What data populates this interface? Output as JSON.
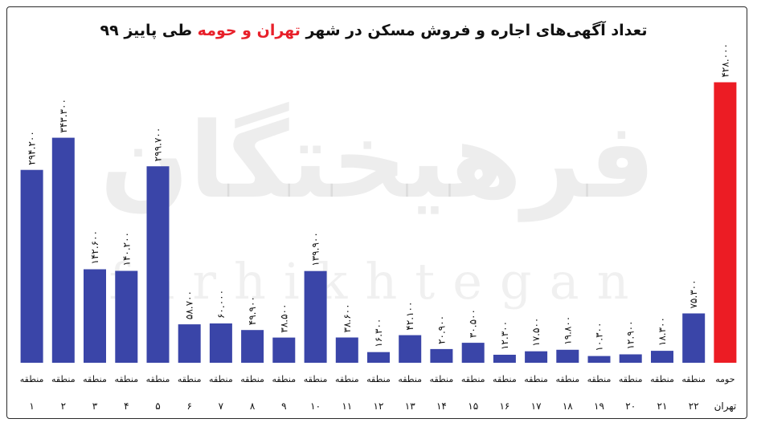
{
  "chart_data": {
    "type": "bar",
    "title_parts": [
      {
        "text": "تعداد آگهی‌های اجاره و فروش مسکن در شهر ",
        "color": "#111111"
      },
      {
        "text": "تهران و حومه",
        "color": "#e8202a"
      },
      {
        "text": " طی پاییز ۹۹",
        "color": "#111111"
      }
    ],
    "watermark": {
      "fa": "فرهیختگان",
      "en": "farhikhtegan"
    },
    "xlabel": "",
    "ylabel": "",
    "ylim": [
      0,
      480000
    ],
    "bar_color": "#3a45a8",
    "highlight_color": "#ec1c24",
    "categories": [
      {
        "line1": "منطقه",
        "line2": "۱"
      },
      {
        "line1": "منطقه",
        "line2": "۲"
      },
      {
        "line1": "منطقه",
        "line2": "۳"
      },
      {
        "line1": "منطقه",
        "line2": "۴"
      },
      {
        "line1": "منطقه",
        "line2": "۵"
      },
      {
        "line1": "منطقه",
        "line2": "۶"
      },
      {
        "line1": "منطقه",
        "line2": "۷"
      },
      {
        "line1": "منطقه",
        "line2": "۸"
      },
      {
        "line1": "منطقه",
        "line2": "۹"
      },
      {
        "line1": "منطقه",
        "line2": "۱۰"
      },
      {
        "line1": "منطقه",
        "line2": "۱۱"
      },
      {
        "line1": "منطقه",
        "line2": "۱۲"
      },
      {
        "line1": "منطقه",
        "line2": "۱۳"
      },
      {
        "line1": "منطقه",
        "line2": "۱۴"
      },
      {
        "line1": "منطقه",
        "line2": "۱۵"
      },
      {
        "line1": "منطقه",
        "line2": "۱۶"
      },
      {
        "line1": "منطقه",
        "line2": "۱۷"
      },
      {
        "line1": "منطقه",
        "line2": "۱۸"
      },
      {
        "line1": "منطقه",
        "line2": "۱۹"
      },
      {
        "line1": "منطقه",
        "line2": "۲۰"
      },
      {
        "line1": "منطقه",
        "line2": "۲۱"
      },
      {
        "line1": "منطقه",
        "line2": "۲۲"
      },
      {
        "line1": "حومه",
        "line2": "تهران"
      }
    ],
    "values": [
      294200,
      343300,
      142600,
      140200,
      299700,
      58700,
      60000,
      49900,
      38500,
      139900,
      38600,
      16300,
      42100,
      20900,
      30500,
      12300,
      17500,
      19800,
      10300,
      12900,
      18300,
      75300,
      428000
    ],
    "value_labels": [
      "۲۹۴.۲۰۰",
      "۳۴۳.۳۰۰",
      "۱۴۲.۶۰۰",
      "۱۴۰.۲۰۰",
      "۲۹۹.۷۰۰",
      "۵۸.۷۰۰",
      "۶۰.۰۰۰",
      "۴۹.۹۰۰",
      "۳۸.۵۰۰",
      "۱۳۹.۹۰۰",
      "۳۸.۶۰۰",
      "۱۶.۳۰۰",
      "۴۲.۱۰۰",
      "۲۰.۹۰۰",
      "۳۰.۵۰۰",
      "۱۲.۳۰۰",
      "۱۷.۵۰۰",
      "۱۹.۸۰۰",
      "۱۰.۳۰۰",
      "۱۲.۹۰۰",
      "۱۸.۳۰۰",
      "۷۵.۳۰۰",
      "۴۲۸.۰۰۰"
    ],
    "highlight_index": 22,
    "grid": false,
    "legend": "none"
  }
}
